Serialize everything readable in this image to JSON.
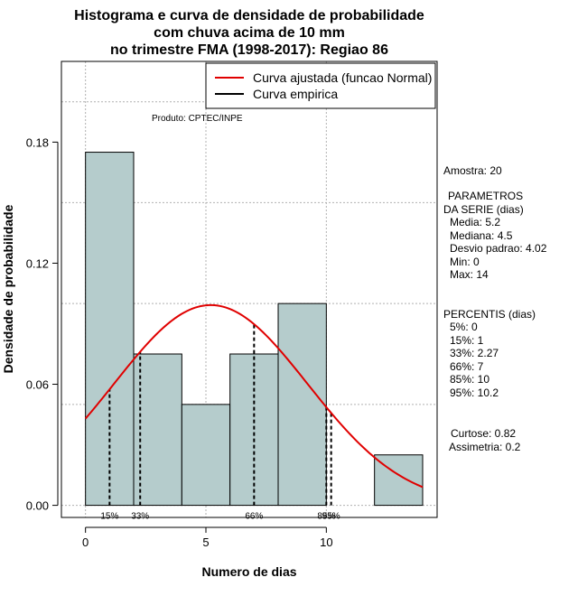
{
  "chart_data": {
    "type": "bar",
    "title_lines": [
      "Histograma e curva de densidade de probabilidade",
      "com chuva acima de 10 mm",
      "no trimestre FMA (1998-2017): Regiao 86"
    ],
    "xlabel": "Numero de dias",
    "ylabel": "Densidade de probabilidade",
    "xlim": [
      -1,
      14.6
    ],
    "ylim": [
      -0.006,
      0.22
    ],
    "xticks": [
      0,
      5,
      10
    ],
    "yticks": [
      0.0,
      0.06,
      0.12,
      0.18
    ],
    "ytick_labels": [
      "0.00",
      "0.06",
      "0.12",
      "0.18"
    ],
    "bins": [
      {
        "start": 0,
        "end": 2,
        "density": 0.175
      },
      {
        "start": 2,
        "end": 4,
        "density": 0.075
      },
      {
        "start": 4,
        "end": 6,
        "density": 0.05
      },
      {
        "start": 6,
        "end": 8,
        "density": 0.075
      },
      {
        "start": 8,
        "end": 10,
        "density": 0.1
      },
      {
        "start": 10,
        "end": 12,
        "density": 0.0
      },
      {
        "start": 12,
        "end": 14,
        "density": 0.025
      }
    ],
    "normal_curve": {
      "mean": 5.2,
      "sd": 4.02,
      "x_from": 0,
      "x_to": 14,
      "color": "#e00000"
    },
    "percentile_lines": [
      {
        "x": 1,
        "label": "15%"
      },
      {
        "x": 2.27,
        "label": "33%"
      },
      {
        "x": 7,
        "label": "66%"
      },
      {
        "x": 10,
        "label": "85%"
      },
      {
        "x": 10.2,
        "label": "95%"
      }
    ],
    "legend": {
      "position": "top-right",
      "entries": [
        {
          "label": "Curva ajustada (funcao Normal)",
          "color": "#e00000"
        },
        {
          "label": "Curva empirica",
          "color": "#000000"
        }
      ]
    },
    "product_label": "Produto: CPTEC/INPE",
    "colors": {
      "bar_fill": "#b5cccc",
      "curve": "#e00000"
    }
  },
  "stats_panel": {
    "sample": "Amostra: 20",
    "params_header_1": "PARAMETROS",
    "params_header_2": "DA SERIE (dias)",
    "params": [
      "Media: 5.2",
      "Mediana: 4.5",
      "Desvio padrao: 4.02",
      "Min: 0",
      "Max: 14"
    ],
    "percentis_header": "PERCENTIS (dias)",
    "percentis": [
      "5%: 0",
      "15%: 1",
      "33%: 2.27",
      "66%: 7",
      "85%: 10",
      "95%: 10.2"
    ],
    "curtose": "Curtose: 0.82",
    "assimetria": "Assimetria: 0.2"
  }
}
